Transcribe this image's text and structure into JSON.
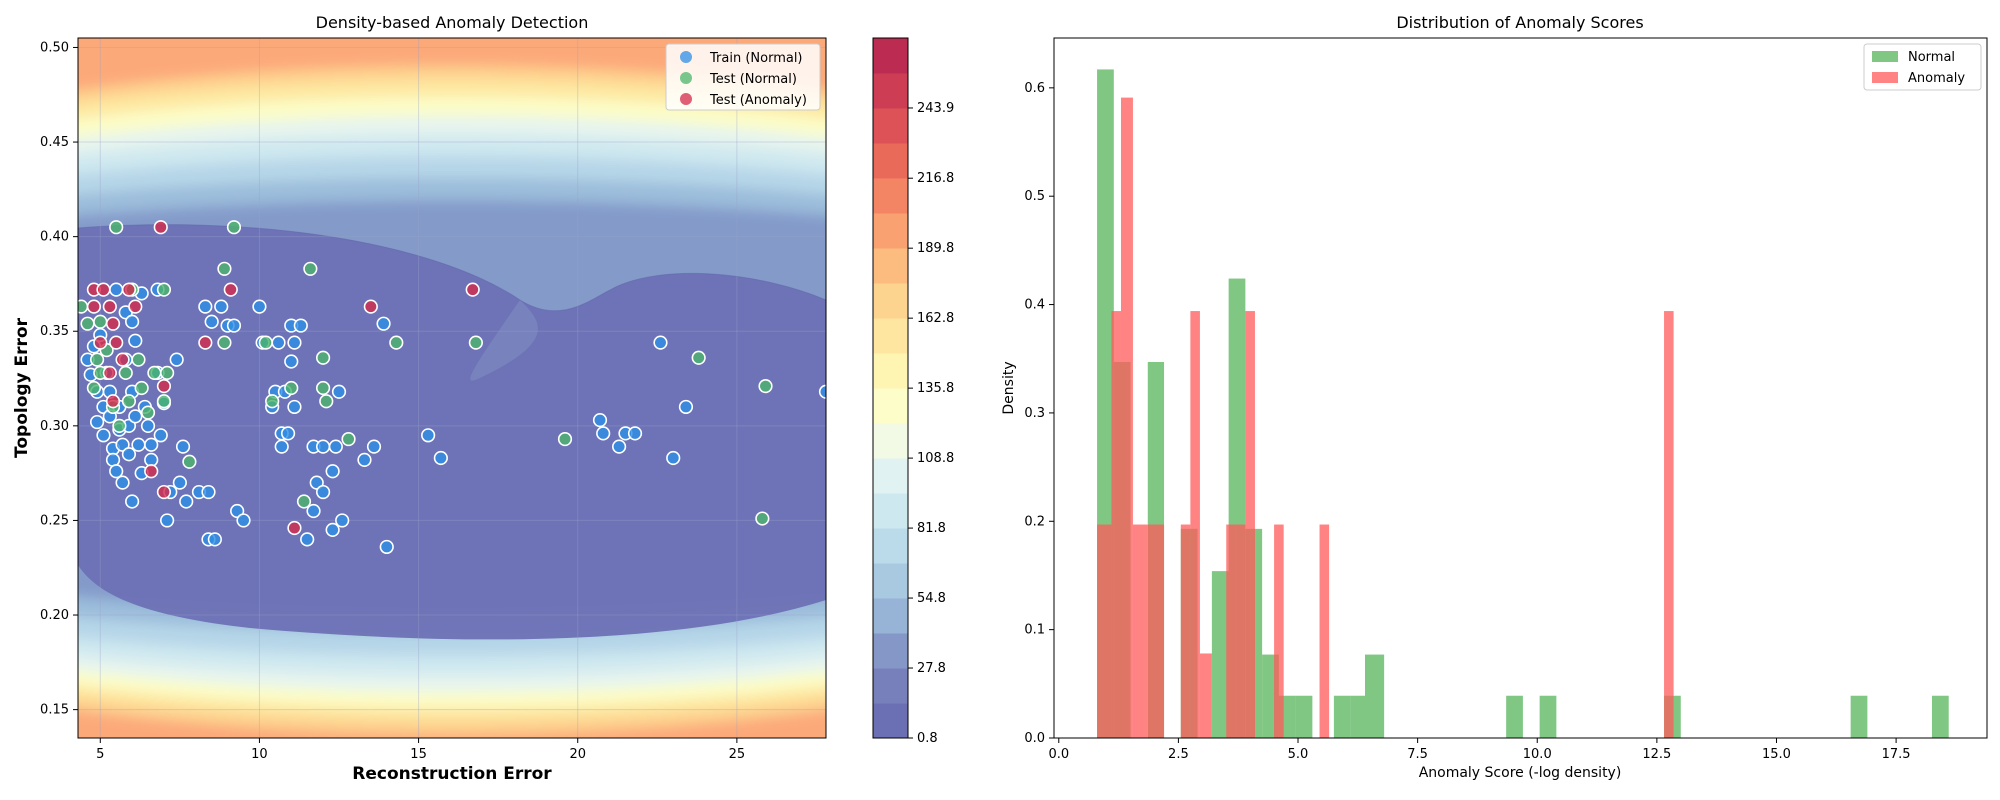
{
  "chart_data": [
    {
      "type": "scatter",
      "title": "Density-based Anomaly Detection",
      "xlabel": "Reconstruction Error",
      "ylabel": "Topology Error",
      "xlim": [
        4.3,
        27.8
      ],
      "ylim": [
        0.135,
        0.505
      ],
      "xticks": [
        5,
        10,
        15,
        20,
        25
      ],
      "yticks": [
        0.15,
        0.2,
        0.25,
        0.3,
        0.35,
        0.4,
        0.45,
        0.5
      ],
      "grid": true,
      "legend_placement": "top-right",
      "background": "filled density contours (RdYlBu_r)",
      "colorbar": {
        "min": 0.8,
        "max": 270.9,
        "ticks": [
          "0.8",
          "27.8",
          "54.8",
          "81.8",
          "108.8",
          "135.8",
          "162.8",
          "189.8",
          "216.8",
          "243.9"
        ],
        "levels": 20,
        "colors": [
          "#6b6fb4",
          "#7880bc",
          "#8597c7",
          "#97b3d6",
          "#a9c9e1",
          "#bbdbea",
          "#cee8f0",
          "#e1f2f3",
          "#f2f9e5",
          "#fcfdc8",
          "#fef5b3",
          "#fee6a1",
          "#fdd390",
          "#fcbc7f",
          "#f9a170",
          "#f48564",
          "#ea6a5a",
          "#dd5256",
          "#cd3e54",
          "#bc2c52"
        ]
      },
      "series": [
        {
          "name": "Train (Normal)",
          "color": "#2d8ee6",
          "points": [
            [
              4.6,
              0.335
            ],
            [
              4.7,
              0.327
            ],
            [
              4.8,
              0.342
            ],
            [
              4.9,
              0.302
            ],
            [
              4.9,
              0.318
            ],
            [
              5.0,
              0.348
            ],
            [
              5.1,
              0.31
            ],
            [
              5.1,
              0.295
            ],
            [
              5.2,
              0.328
            ],
            [
              5.3,
              0.318
            ],
            [
              5.3,
              0.305
            ],
            [
              5.4,
              0.288
            ],
            [
              5.4,
              0.282
            ],
            [
              5.5,
              0.372
            ],
            [
              5.5,
              0.276
            ],
            [
              5.6,
              0.31
            ],
            [
              5.6,
              0.298
            ],
            [
              5.7,
              0.29
            ],
            [
              5.7,
              0.27
            ],
            [
              5.8,
              0.36
            ],
            [
              5.8,
              0.335
            ],
            [
              5.9,
              0.3
            ],
            [
              5.9,
              0.285
            ],
            [
              6.0,
              0.355
            ],
            [
              6.0,
              0.318
            ],
            [
              6.0,
              0.26
            ],
            [
              6.1,
              0.345
            ],
            [
              6.1,
              0.305
            ],
            [
              6.2,
              0.29
            ],
            [
              6.3,
              0.37
            ],
            [
              6.3,
              0.275
            ],
            [
              6.4,
              0.31
            ],
            [
              6.5,
              0.3
            ],
            [
              6.6,
              0.29
            ],
            [
              6.6,
              0.282
            ],
            [
              6.8,
              0.372
            ],
            [
              6.8,
              0.328
            ],
            [
              6.9,
              0.295
            ],
            [
              7.0,
              0.312
            ],
            [
              7.1,
              0.25
            ],
            [
              7.2,
              0.265
            ],
            [
              7.4,
              0.335
            ],
            [
              7.5,
              0.27
            ],
            [
              7.6,
              0.289
            ],
            [
              7.7,
              0.26
            ],
            [
              8.1,
              0.265
            ],
            [
              8.3,
              0.363
            ],
            [
              8.4,
              0.265
            ],
            [
              8.4,
              0.24
            ],
            [
              8.5,
              0.355
            ],
            [
              8.6,
              0.24
            ],
            [
              8.8,
              0.363
            ],
            [
              9.0,
              0.353
            ],
            [
              9.2,
              0.353
            ],
            [
              9.3,
              0.255
            ],
            [
              9.5,
              0.25
            ],
            [
              10.0,
              0.363
            ],
            [
              10.1,
              0.344
            ],
            [
              10.4,
              0.31
            ],
            [
              10.5,
              0.318
            ],
            [
              10.6,
              0.344
            ],
            [
              10.7,
              0.296
            ],
            [
              10.7,
              0.289
            ],
            [
              10.8,
              0.318
            ],
            [
              10.9,
              0.296
            ],
            [
              11.0,
              0.353
            ],
            [
              11.0,
              0.334
            ],
            [
              11.1,
              0.31
            ],
            [
              11.1,
              0.344
            ],
            [
              11.3,
              0.353
            ],
            [
              11.5,
              0.24
            ],
            [
              11.7,
              0.255
            ],
            [
              11.7,
              0.289
            ],
            [
              11.8,
              0.27
            ],
            [
              12.0,
              0.265
            ],
            [
              12.0,
              0.289
            ],
            [
              12.3,
              0.276
            ],
            [
              12.3,
              0.245
            ],
            [
              12.4,
              0.289
            ],
            [
              12.5,
              0.318
            ],
            [
              12.6,
              0.25
            ],
            [
              13.3,
              0.282
            ],
            [
              13.6,
              0.289
            ],
            [
              13.9,
              0.354
            ],
            [
              14.0,
              0.236
            ],
            [
              15.3,
              0.295
            ],
            [
              15.7,
              0.283
            ],
            [
              20.7,
              0.303
            ],
            [
              20.8,
              0.296
            ],
            [
              21.3,
              0.289
            ],
            [
              21.5,
              0.296
            ],
            [
              21.8,
              0.296
            ],
            [
              22.6,
              0.344
            ],
            [
              23.0,
              0.283
            ],
            [
              23.4,
              0.31
            ],
            [
              27.8,
              0.318
            ]
          ]
        },
        {
          "name": "Test (Normal)",
          "color": "#4bb56a",
          "points": [
            [
              4.4,
              0.363
            ],
            [
              4.6,
              0.354
            ],
            [
              4.8,
              0.32
            ],
            [
              4.9,
              0.335
            ],
            [
              5.0,
              0.355
            ],
            [
              5.0,
              0.328
            ],
            [
              5.2,
              0.34
            ],
            [
              5.4,
              0.31
            ],
            [
              5.5,
              0.405
            ],
            [
              5.6,
              0.3
            ],
            [
              5.8,
              0.328
            ],
            [
              5.9,
              0.313
            ],
            [
              6.0,
              0.372
            ],
            [
              6.2,
              0.335
            ],
            [
              6.3,
              0.32
            ],
            [
              6.5,
              0.307
            ],
            [
              6.7,
              0.328
            ],
            [
              7.0,
              0.313
            ],
            [
              7.0,
              0.372
            ],
            [
              7.1,
              0.328
            ],
            [
              7.8,
              0.281
            ],
            [
              8.9,
              0.383
            ],
            [
              8.9,
              0.344
            ],
            [
              9.2,
              0.405
            ],
            [
              10.2,
              0.344
            ],
            [
              10.4,
              0.313
            ],
            [
              11.0,
              0.32
            ],
            [
              11.4,
              0.26
            ],
            [
              11.6,
              0.383
            ],
            [
              12.0,
              0.32
            ],
            [
              12.1,
              0.313
            ],
            [
              12.0,
              0.336
            ],
            [
              12.8,
              0.293
            ],
            [
              14.3,
              0.344
            ],
            [
              16.8,
              0.344
            ],
            [
              19.6,
              0.293
            ],
            [
              23.8,
              0.336
            ],
            [
              25.8,
              0.251
            ],
            [
              25.9,
              0.321
            ]
          ]
        },
        {
          "name": "Test (Anomaly)",
          "color": "#d42a4a",
          "points": [
            [
              4.8,
              0.363
            ],
            [
              4.8,
              0.372
            ],
            [
              5.0,
              0.344
            ],
            [
              5.1,
              0.372
            ],
            [
              5.3,
              0.363
            ],
            [
              5.3,
              0.328
            ],
            [
              5.4,
              0.354
            ],
            [
              5.4,
              0.313
            ],
            [
              5.5,
              0.344
            ],
            [
              5.7,
              0.335
            ],
            [
              5.9,
              0.372
            ],
            [
              6.1,
              0.363
            ],
            [
              6.6,
              0.276
            ],
            [
              6.9,
              0.405
            ],
            [
              7.0,
              0.265
            ],
            [
              7.0,
              0.321
            ],
            [
              8.3,
              0.344
            ],
            [
              9.1,
              0.372
            ],
            [
              11.1,
              0.246
            ],
            [
              13.5,
              0.363
            ],
            [
              16.7,
              0.372
            ]
          ]
        }
      ]
    },
    {
      "type": "bar",
      "subtype": "histogram",
      "title": "Distribution of Anomaly Scores",
      "xlabel": "Anomaly Score (-log density)",
      "ylabel": "Density",
      "xlim": [
        -0.1,
        19.4
      ],
      "ylim": [
        0,
        0.646
      ],
      "xticks": [
        "0.0",
        "2.5",
        "5.0",
        "7.5",
        "10.0",
        "12.5",
        "15.0",
        "17.5"
      ],
      "yticks": [
        "0.0",
        "0.1",
        "0.2",
        "0.3",
        "0.4",
        "0.5",
        "0.6"
      ],
      "legend_placement": "top-right",
      "series": [
        {
          "name": "Normal",
          "color": "#4caf50",
          "opacity": 0.7,
          "bins": [
            [
              0.8,
              1.15,
              0.617
            ],
            [
              1.15,
              1.5,
              0.347
            ],
            [
              1.5,
              1.86,
              0.0
            ],
            [
              1.86,
              2.2,
              0.347
            ],
            [
              2.2,
              2.55,
              0.0
            ],
            [
              2.55,
              2.9,
              0.193
            ],
            [
              2.9,
              3.2,
              0.0
            ],
            [
              3.2,
              3.55,
              0.154
            ],
            [
              3.55,
              3.9,
              0.424
            ],
            [
              3.9,
              4.25,
              0.193
            ],
            [
              4.25,
              4.6,
              0.077
            ],
            [
              4.6,
              4.95,
              0.039
            ],
            [
              4.95,
              5.3,
              0.039
            ],
            [
              5.3,
              5.75,
              0.0
            ],
            [
              5.75,
              6.1,
              0.039
            ],
            [
              6.1,
              6.4,
              0.039
            ],
            [
              6.4,
              6.8,
              0.077
            ],
            [
              9.35,
              9.7,
              0.039
            ],
            [
              10.05,
              10.4,
              0.039
            ],
            [
              12.65,
              13.0,
              0.039
            ],
            [
              16.55,
              16.9,
              0.039
            ],
            [
              18.25,
              18.6,
              0.039
            ]
          ]
        },
        {
          "name": "Anomaly",
          "color": "#ff5a5a",
          "opacity": 0.75,
          "bins": [
            [
              0.8,
              1.1,
              0.197
            ],
            [
              1.1,
              1.3,
              0.394
            ],
            [
              1.3,
              1.55,
              0.591
            ],
            [
              1.55,
              1.85,
              0.197
            ],
            [
              1.85,
              2.2,
              0.197
            ],
            [
              2.55,
              2.75,
              0.197
            ],
            [
              2.75,
              2.95,
              0.394
            ],
            [
              2.95,
              3.2,
              0.078
            ],
            [
              3.5,
              3.7,
              0.197
            ],
            [
              3.7,
              3.9,
              0.197
            ],
            [
              3.9,
              4.1,
              0.394
            ],
            [
              4.5,
              4.7,
              0.197
            ],
            [
              5.45,
              5.65,
              0.197
            ],
            [
              12.65,
              12.85,
              0.394
            ]
          ]
        }
      ]
    }
  ]
}
